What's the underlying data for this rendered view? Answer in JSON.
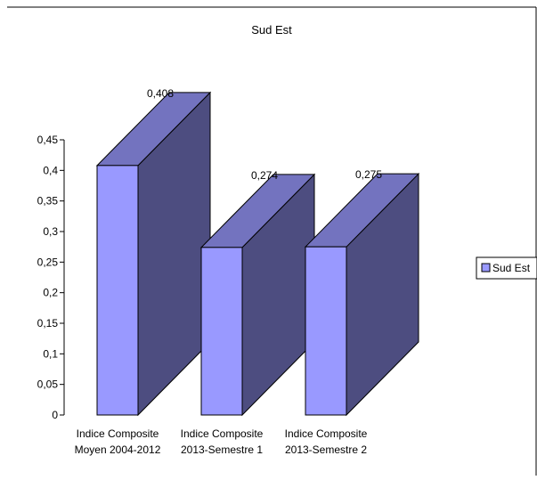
{
  "chart_data": {
    "type": "bar",
    "style": "3d",
    "title": "Sud Est",
    "xlabel": "",
    "ylabel": "",
    "categories": [
      [
        "Indice Composite",
        "Moyen 2004-2012"
      ],
      [
        "Indice Composite",
        "2013-Semestre 1"
      ],
      [
        "Indice Composite",
        "2013-Semestre 2"
      ]
    ],
    "series": [
      {
        "name": "Sud Est",
        "values": [
          0.408,
          0.274,
          0.275
        ],
        "value_labels": [
          "0,408",
          "0,274",
          "0,275"
        ]
      }
    ],
    "ylim": [
      0,
      0.45
    ],
    "yticks": [
      0,
      0.05,
      0.1,
      0.15,
      0.2,
      0.25,
      0.3,
      0.35,
      0.4,
      0.45
    ],
    "ytick_labels": [
      "0",
      "0,05",
      "0,1",
      "0,15",
      "0,2",
      "0,25",
      "0,3",
      "0,35",
      "0,4",
      "0,45"
    ],
    "grid": false,
    "legend_position": "right",
    "colors": {
      "front": "#9999ff",
      "top": "#7373bf",
      "side": "#4d4d80",
      "border": "#000000"
    }
  }
}
